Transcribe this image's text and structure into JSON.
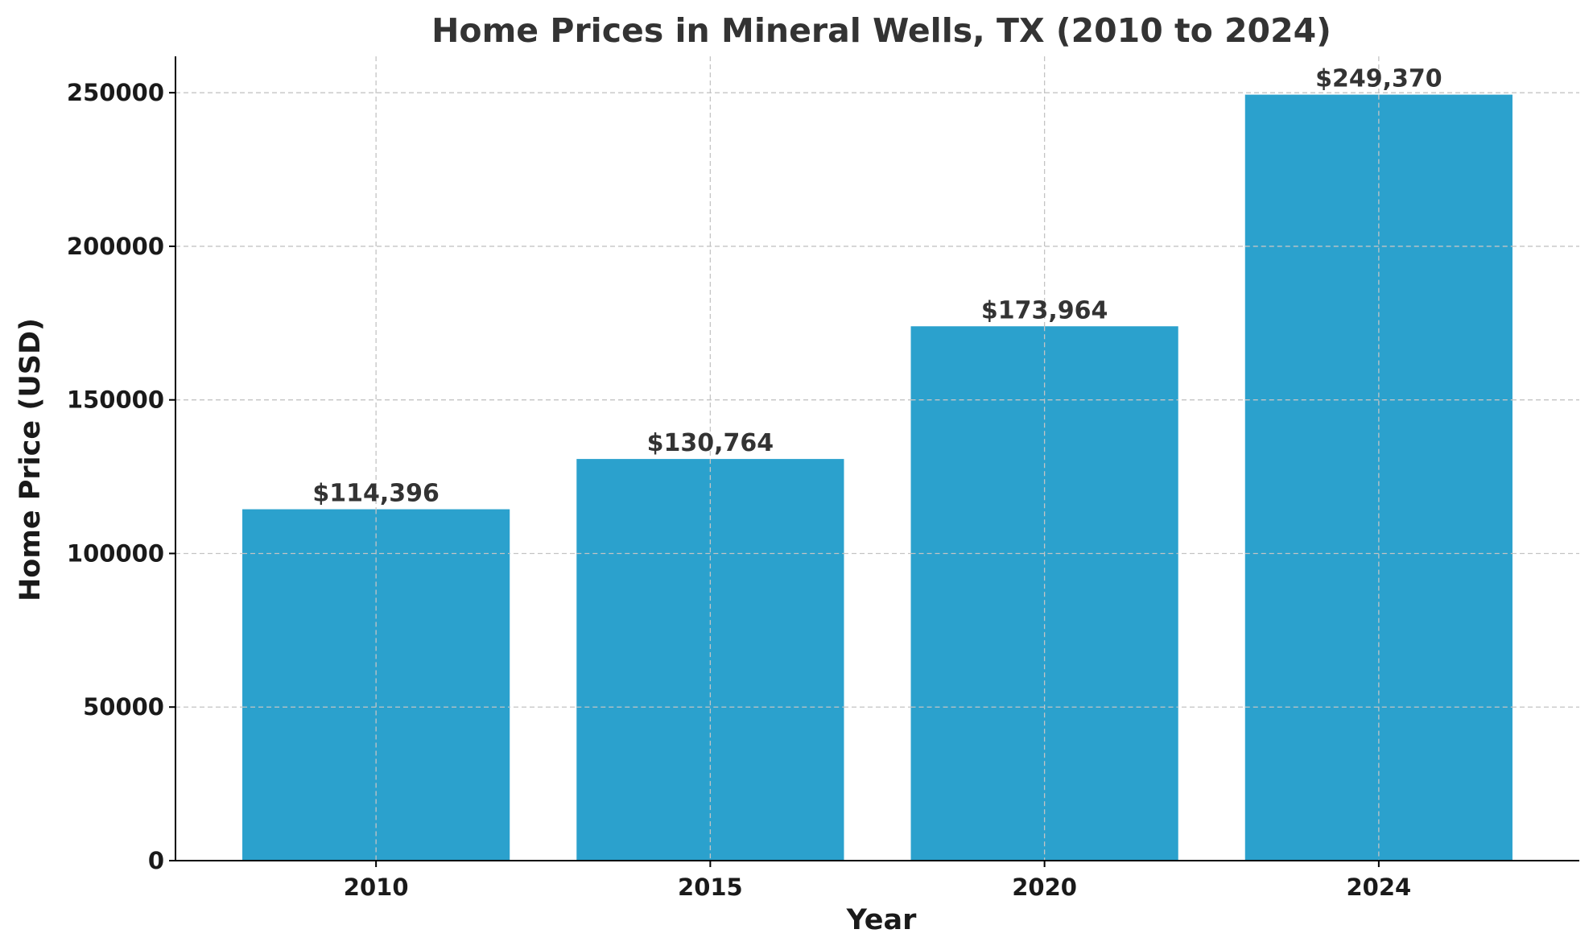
{
  "chart_data": {
    "type": "bar",
    "title": "Home Prices in Mineral Wells, TX (2010 to 2024)",
    "xlabel": "Year",
    "ylabel": "Home Price (USD)",
    "categories": [
      "2010",
      "2015",
      "2020",
      "2024"
    ],
    "values": [
      114396,
      130764,
      173964,
      249370
    ],
    "data_labels": [
      "$114,396",
      "$130,764",
      "$173,964",
      "$249,370"
    ],
    "y_ticks": [
      0,
      50000,
      100000,
      150000,
      200000,
      250000
    ],
    "y_tick_labels": [
      "0",
      "50000",
      "100000",
      "150000",
      "200000",
      "250000"
    ],
    "ylim": [
      0,
      261838
    ],
    "grid": true,
    "legend": "none",
    "bar_color": "#2ba1cd"
  }
}
